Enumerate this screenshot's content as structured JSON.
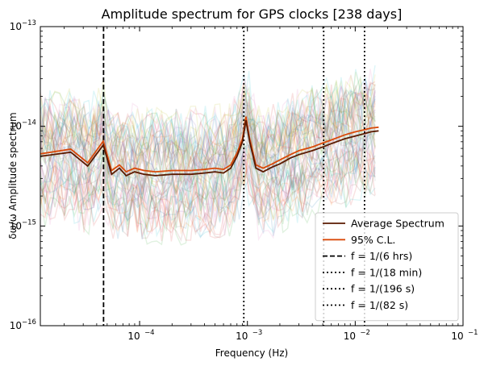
{
  "chart_data": {
    "type": "line",
    "title": "Amplitude spectrum for GPS clocks [238 days]",
    "xlabel": "Frequency (Hz)",
    "ylabel": "δω/ω Amplitude spectrum",
    "x_scale": "log",
    "y_scale": "log",
    "xlim": [
      1.2e-05,
      0.1
    ],
    "ylim": [
      1e-16,
      1e-13
    ],
    "x_ticks": [
      {
        "value": 0.0001,
        "base": "10",
        "exp": "−4"
      },
      {
        "value": 0.001,
        "base": "10",
        "exp": "−3"
      },
      {
        "value": 0.01,
        "base": "10",
        "exp": "−2"
      },
      {
        "value": 0.1,
        "base": "10",
        "exp": "−1"
      }
    ],
    "y_ticks": [
      {
        "value": 1e-16,
        "base": "10",
        "exp": "−16"
      },
      {
        "value": 1e-15,
        "base": "10",
        "exp": "−15"
      },
      {
        "value": 1e-14,
        "base": "10",
        "exp": "−14"
      },
      {
        "value": 1e-13,
        "base": "10",
        "exp": "−13"
      }
    ],
    "grid": false,
    "legend_position": "bottom-right",
    "series": [
      {
        "name": "Average Spectrum",
        "color": "#5a1a00",
        "style": "solid",
        "x": [
          1.2e-05,
          2.3e-05,
          3.3e-05,
          4.6e-05,
          5.5e-05,
          6.5e-05,
          7.5e-05,
          9e-05,
          0.00011,
          0.00014,
          0.0002,
          0.0003,
          0.0004,
          0.0005,
          0.0006,
          0.0007,
          0.0008,
          0.0009,
          0.00097,
          0.00105,
          0.0012,
          0.0014,
          0.0017,
          0.002,
          0.0025,
          0.003,
          0.004,
          0.005,
          0.006,
          0.008,
          0.01,
          0.012,
          0.014,
          0.0165
        ],
        "y": [
          5e-15,
          5.5e-15,
          4e-15,
          6.5e-15,
          3.3e-15,
          3.8e-15,
          3.2e-15,
          3.5e-15,
          3.3e-15,
          3.2e-15,
          3.3e-15,
          3.3e-15,
          3.4e-15,
          3.5e-15,
          3.4e-15,
          3.8e-15,
          5e-15,
          7e-15,
          1.15e-14,
          7e-15,
          3.8e-15,
          3.5e-15,
          3.9e-15,
          4.2e-15,
          4.8e-15,
          5.2e-15,
          5.7e-15,
          6.2e-15,
          6.7e-15,
          7.5e-15,
          8e-15,
          8.4e-15,
          8.8e-15,
          9e-15
        ]
      },
      {
        "name": "95% C.L.",
        "color": "#d94a0a",
        "style": "solid",
        "x": [
          1.2e-05,
          2.3e-05,
          3.3e-05,
          4.6e-05,
          5.5e-05,
          6.5e-05,
          7.5e-05,
          9e-05,
          0.00011,
          0.00014,
          0.0002,
          0.0003,
          0.0004,
          0.0005,
          0.0006,
          0.0007,
          0.0008,
          0.0009,
          0.00097,
          0.00105,
          0.0012,
          0.0014,
          0.0017,
          0.002,
          0.0025,
          0.003,
          0.004,
          0.005,
          0.006,
          0.008,
          0.01,
          0.012,
          0.014,
          0.0165
        ],
        "y": [
          5.3e-15,
          5.9e-15,
          4.3e-15,
          7.1e-15,
          3.6e-15,
          4.1e-15,
          3.5e-15,
          3.8e-15,
          3.6e-15,
          3.5e-15,
          3.6e-15,
          3.6e-15,
          3.7e-15,
          3.8e-15,
          3.7e-15,
          4.1e-15,
          5.4e-15,
          7.5e-15,
          1.25e-14,
          7.5e-15,
          4.1e-15,
          3.8e-15,
          4.2e-15,
          4.6e-15,
          5.2e-15,
          5.7e-15,
          6.2e-15,
          6.8e-15,
          7.3e-15,
          8.2e-15,
          8.8e-15,
          9.2e-15,
          9.6e-15,
          9.8e-15
        ]
      }
    ],
    "vlines": [
      {
        "name": "f = 1/(6 hrs)",
        "x": 4.63e-05,
        "style": "dashed",
        "color": "#000000"
      },
      {
        "name": "f = 1/(18 min)",
        "x": 0.000926,
        "style": "dotted",
        "color": "#000000"
      },
      {
        "name": "f = 1/(196 s)",
        "x": 0.0051,
        "style": "dotted",
        "color": "#000000"
      },
      {
        "name": "f = 1/(82 s)",
        "x": 0.0122,
        "style": "dotted",
        "color": "#000000"
      }
    ],
    "background_traces": {
      "description_visible": false,
      "count_drawn": 0,
      "colors": [
        "#1f77b4",
        "#ff7f0e",
        "#2ca02c",
        "#d62728",
        "#9467bd",
        "#8c564b",
        "#e377c2",
        "#7f7f7f",
        "#bcbd22",
        "#17becf"
      ]
    }
  }
}
